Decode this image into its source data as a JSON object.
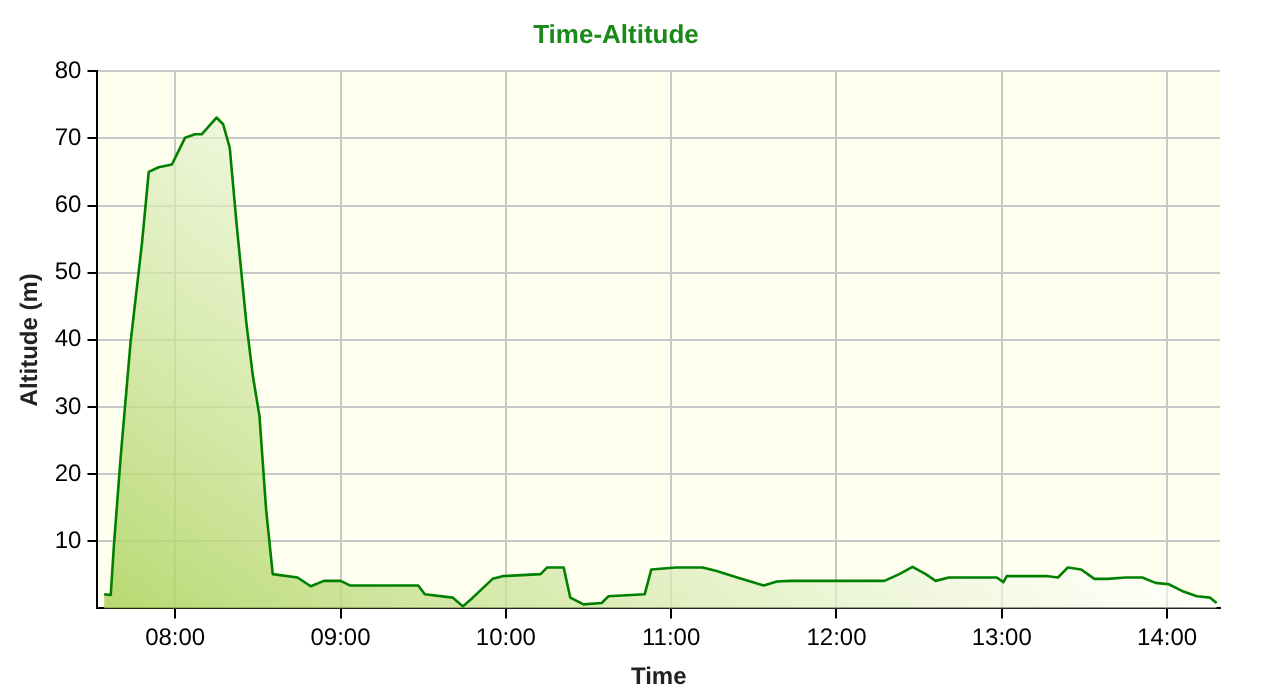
{
  "chart_data": {
    "type": "area",
    "title": "Time-Altitude",
    "xlabel": "Time",
    "ylabel": "Altitude (m)",
    "x": [
      7.57,
      7.61,
      7.63,
      7.67,
      7.73,
      7.8,
      7.84,
      7.9,
      7.98,
      8.06,
      8.12,
      8.16,
      8.25,
      8.29,
      8.33,
      8.37,
      8.43,
      8.47,
      8.51,
      8.55,
      8.59,
      8.74,
      8.82,
      8.9,
      9.0,
      9.06,
      9.47,
      9.51,
      9.68,
      9.74,
      9.8,
      9.92,
      9.98,
      10.21,
      10.25,
      10.35,
      10.39,
      10.47,
      10.58,
      10.62,
      10.84,
      10.88,
      11.03,
      11.19,
      11.27,
      11.4,
      11.56,
      11.64,
      11.72,
      12.29,
      12.38,
      12.46,
      12.54,
      12.6,
      12.68,
      12.97,
      13.01,
      13.03,
      13.28,
      13.34,
      13.4,
      13.48,
      13.56,
      13.64,
      13.75,
      13.85,
      13.93,
      14.01,
      14.09,
      14.18,
      14.26,
      14.3
    ],
    "series": [
      {
        "color": "#008000",
        "values": [
          2.1,
          2,
          9.6,
          22.5,
          39.6,
          54.6,
          65,
          65.7,
          66.1,
          70.1,
          70.6,
          70.6,
          73.1,
          72.1,
          68.6,
          57.6,
          42.6,
          34.6,
          28.6,
          14.7,
          5.1,
          4.6,
          3.3,
          4.1,
          4.1,
          3.4,
          3.4,
          2.1,
          1.6,
          0.3,
          1.6,
          4.4,
          4.8,
          5.1,
          6.1,
          6.1,
          1.6,
          0.6,
          0.8,
          1.8,
          2.1,
          5.8,
          6.1,
          6.1,
          5.6,
          4.6,
          3.4,
          4,
          4.1,
          4.1,
          5.1,
          6.2,
          5.1,
          4.1,
          4.6,
          4.6,
          3.9,
          4.8,
          4.8,
          4.6,
          6.1,
          5.8,
          4.4,
          4.4,
          4.6,
          4.6,
          3.8,
          3.6,
          2.6,
          1.8,
          1.6,
          0.8
        ]
      }
    ],
    "xlim": [
      7.53,
      14.32
    ],
    "xticks": [
      {
        "value": 8,
        "label": "08:00"
      },
      {
        "value": 9,
        "label": "09:00"
      },
      {
        "value": 10,
        "label": "10:00"
      },
      {
        "value": 11,
        "label": "11:00"
      },
      {
        "value": 12,
        "label": "12:00"
      },
      {
        "value": 13,
        "label": "13:00"
      },
      {
        "value": 14,
        "label": "14:00"
      }
    ],
    "ylim": [
      0,
      80
    ],
    "yticks": [
      10,
      20,
      30,
      40,
      50,
      60,
      70,
      80
    ],
    "grid": true,
    "legend": false,
    "marker": "none",
    "line_style": "solid"
  }
}
